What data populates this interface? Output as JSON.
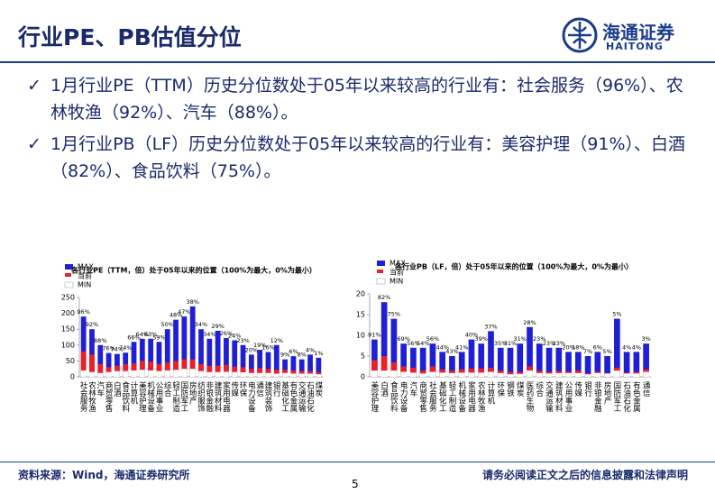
{
  "header": {
    "title": "行业PE、PB估值分位",
    "logo_cn": "海通证券",
    "logo_en": "HAITONG"
  },
  "bullets": [
    "1月行业PE（TTM）历史分位数处于05年以来较高的行业有：社会服务（96%）、农林牧渔（92%）、汽车（88%）。",
    "1月行业PB（LF）历史分位数处于05年以来较高的行业有：美容护理（91%）、白酒（82%）、食品饮料（75%）。"
  ],
  "chart_data": [
    {
      "type": "bar",
      "title": "各行业PE（TTM，倍）处于05年以来的位置（100%为最大，0%为最小）",
      "categories": [
        "社会服务",
        "农林牧渔",
        "汽车",
        "商贸零售",
        "白酒",
        "食品饮料",
        "计算机",
        "美容护理",
        "机械设备",
        "公用事业",
        "综合",
        "轻工制造",
        "国防军工",
        "房地产",
        "纺织服饰",
        "非银金融",
        "建筑材料",
        "家用电器",
        "传媒",
        "环保",
        "电力设备",
        "通信",
        "建筑装饰",
        "银行",
        "基础化工",
        "有色金属",
        "交通运输",
        "石油石化",
        "煤炭"
      ],
      "series": [
        {
          "name": "MAX",
          "color": "#1f1fd6",
          "values": [
            190,
            150,
            100,
            75,
            72,
            76,
            110,
            120,
            120,
            110,
            150,
            180,
            190,
            222,
            150,
            120,
            145,
            122,
            115,
            100,
            70,
            85,
            78,
            100,
            55,
            65,
            55,
            70,
            60
          ]
        },
        {
          "name": "当前",
          "color": "#e8202a",
          "values": [
            80,
            70,
            40,
            30,
            35,
            40,
            42,
            50,
            48,
            40,
            45,
            50,
            55,
            55,
            40,
            35,
            35,
            38,
            32,
            30,
            25,
            28,
            25,
            22,
            22,
            20,
            18,
            18,
            15
          ]
        },
        {
          "name": "MIN",
          "color": "#ffffff",
          "values": [
            20,
            15,
            12,
            15,
            18,
            18,
            20,
            22,
            20,
            18,
            20,
            22,
            25,
            25,
            18,
            15,
            15,
            16,
            15,
            14,
            12,
            12,
            12,
            10,
            12,
            10,
            10,
            10,
            8
          ]
        }
      ],
      "annotations": [
        "96%",
        "92%",
        "88%",
        "76%",
        "74%",
        "74%",
        "66%",
        "64%",
        "63%",
        "59%",
        "50%",
        "48%",
        "47%",
        "38%",
        "34%",
        "34%",
        "29%",
        "26%",
        "24%",
        "23%",
        "20%",
        "19%",
        "16%",
        "12%",
        "9%",
        "6%",
        "8%",
        "4%",
        "1%"
      ],
      "ylim": [
        0,
        250
      ],
      "yticks": [
        0,
        50,
        100,
        150,
        200,
        250
      ]
    },
    {
      "type": "bar",
      "title": "各行业PB（LF，倍）处于05年以来的位置（100%为最大，0%为最小）",
      "categories": [
        "美容护理",
        "白酒",
        "食品饮料",
        "电力设备",
        "汽车",
        "商贸零售",
        "社会服务",
        "基础化工",
        "轻工制造",
        "机械设备",
        "家用电器",
        "农林牧渔",
        "计算机",
        "环保",
        "钢铁",
        "煤炭",
        "医药生物",
        "综合",
        "交通运输",
        "建筑材料",
        "公用事业",
        "传媒",
        "银行",
        "非银金融",
        "房地产",
        "国防军工",
        "石油石化",
        "有色金属",
        "通信"
      ],
      "series": [
        {
          "name": "MAX",
          "color": "#1f1fd6",
          "values": [
            9,
            18,
            14,
            8,
            7,
            7,
            8,
            6,
            5,
            6,
            9,
            8,
            11,
            7,
            7,
            8,
            12,
            8,
            7,
            7,
            6,
            6,
            5,
            6,
            5,
            14,
            6,
            6,
            8
          ]
        },
        {
          "name": "当前",
          "color": "#e8202a",
          "values": [
            4,
            5,
            3.5,
            2.5,
            2.2,
            1.5,
            2.5,
            1.8,
            1.5,
            1.8,
            2,
            2,
            2.2,
            1.5,
            1.2,
            1.2,
            2.5,
            1.5,
            1.2,
            1.4,
            1.3,
            1.5,
            0.8,
            1.3,
            0.9,
            2.2,
            1,
            1.2,
            1.8
          ]
        },
        {
          "name": "MIN",
          "color": "#ffffff",
          "values": [
            1.5,
            1.5,
            1.5,
            1.2,
            1,
            0.8,
            1.2,
            1,
            0.9,
            1,
            1,
            1,
            1.2,
            0.9,
            0.6,
            0.7,
            1.5,
            0.9,
            0.8,
            0.9,
            0.9,
            0.9,
            0.6,
            0.9,
            0.8,
            1.5,
            0.8,
            0.8,
            1.2
          ]
        }
      ],
      "annotations": [
        "91%",
        "82%",
        "75%",
        "69%",
        "56%",
        "54%",
        "56%",
        "44%",
        "43%",
        "41%",
        "40%",
        "39%",
        "37%",
        "35%",
        "31%",
        "31%",
        "28%",
        "23%",
        "23%",
        "23%",
        "20%",
        "18%",
        "7%",
        "6%",
        "5%",
        "5%",
        "4%",
        "4%",
        "3%"
      ],
      "ylim": [
        0,
        20
      ],
      "yticks": [
        0,
        5,
        10,
        15,
        20
      ]
    }
  ],
  "footer": {
    "source": "资料来源：Wind，海通证券研究所",
    "disclaimer": "请务必阅读正文之后的信息披露和法律声明",
    "page": "5"
  }
}
